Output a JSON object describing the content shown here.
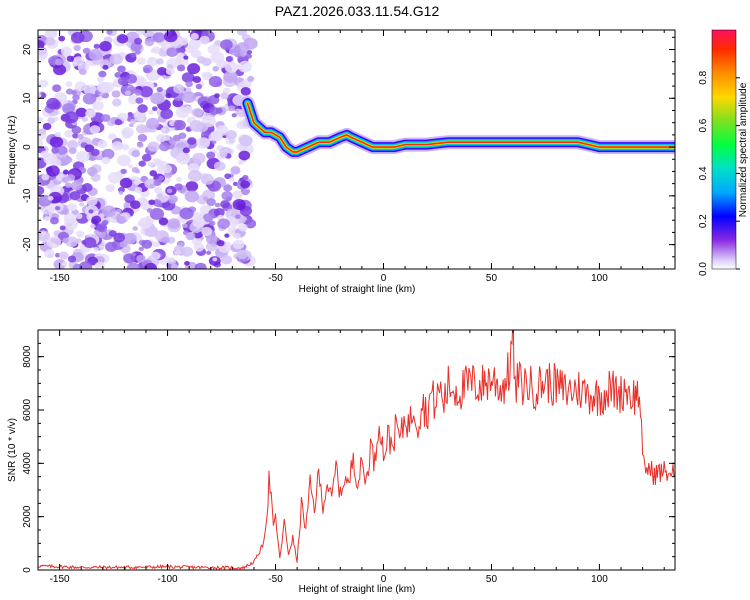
{
  "figure": {
    "title": "PAZ1.2026.033.11.54.G12"
  },
  "colors": {
    "snr_line": "#e8302a",
    "axis": "#000000",
    "background": "#ffffff",
    "colormap": [
      "#ffffff",
      "#b89cf0",
      "#8a2be2",
      "#3c00ff",
      "#0000ff",
      "#00aaff",
      "#00e5c0",
      "#00ff40",
      "#9acd32",
      "#ffd700",
      "#ff8c00",
      "#ff2a00",
      "#ff1060"
    ]
  },
  "chart_data": [
    {
      "type": "heatmap",
      "title": "PAZ1.2026.033.11.54.G12",
      "xlabel": "Height of straight line (km)",
      "ylabel": "Frequency (Hz)",
      "xlim": [
        -160,
        135
      ],
      "ylim": [
        -25,
        24
      ],
      "xticks": [
        -150,
        -100,
        -50,
        0,
        50,
        100
      ],
      "yticks": [
        -20,
        -10,
        0,
        10,
        20
      ],
      "ridge": {
        "x": [
          -63,
          -60,
          -55,
          -52,
          -48,
          -45,
          -42,
          -40,
          -35,
          -30,
          -25,
          -20,
          -17,
          -15,
          -10,
          -5,
          0,
          5,
          10,
          20,
          30,
          40,
          50,
          60,
          70,
          80,
          90,
          95,
          100,
          110,
          120,
          135
        ],
        "y": [
          9,
          5,
          3,
          3,
          2,
          0,
          -1,
          -1,
          0,
          1,
          1,
          2,
          2.5,
          2,
          1,
          0,
          0,
          0,
          0.5,
          0.5,
          1,
          1,
          1,
          1,
          1,
          1,
          1,
          0.5,
          0,
          0,
          0,
          0
        ]
      },
      "noise_region_x": [
        -160,
        -63
      ],
      "colorbar": {
        "label": "Normalized spectral amplitude",
        "range": [
          0,
          1
        ],
        "ticks": [
          "0.0",
          "0.2",
          "0.4",
          "0.6",
          "0.8"
        ]
      }
    },
    {
      "type": "line",
      "xlabel": "Height of straight line (km)",
      "ylabel": "SNR (10 * v/v)",
      "xlim": [
        -160,
        135
      ],
      "ylim": [
        0,
        9000
      ],
      "xticks": [
        -150,
        -100,
        -50,
        0,
        50,
        100
      ],
      "yticks": [
        0,
        2000,
        4000,
        6000,
        8000
      ],
      "series": [
        {
          "name": "SNR",
          "x": [
            -160,
            -140,
            -120,
            -100,
            -80,
            -65,
            -60,
            -56,
            -54,
            -53,
            -52,
            -51,
            -50,
            -48,
            -46,
            -44,
            -42,
            -40,
            -38,
            -36,
            -34,
            -32,
            -30,
            -28,
            -26,
            -24,
            -22,
            -20,
            -18,
            -16,
            -14,
            -12,
            -10,
            -8,
            -6,
            -4,
            -2,
            0,
            2,
            4,
            6,
            8,
            10,
            12,
            14,
            16,
            18,
            20,
            22,
            24,
            26,
            28,
            30,
            35,
            40,
            45,
            50,
            55,
            58,
            60,
            61,
            62,
            64,
            66,
            70,
            75,
            80,
            85,
            90,
            95,
            100,
            105,
            110,
            112,
            115,
            118,
            119,
            120,
            121,
            122,
            125,
            130,
            135
          ],
          "y": [
            150,
            100,
            100,
            120,
            90,
            80,
            300,
            900,
            2000,
            3400,
            2800,
            1500,
            2000,
            400,
            1800,
            600,
            1200,
            300,
            2500,
            1500,
            3200,
            2300,
            3600,
            2400,
            3300,
            2600,
            3900,
            2800,
            3500,
            3100,
            4400,
            3200,
            4000,
            3300,
            4700,
            4000,
            5800,
            4300,
            5000,
            4700,
            5400,
            4900,
            5800,
            5400,
            6200,
            5500,
            6400,
            5800,
            6600,
            6200,
            6800,
            6300,
            6900,
            6700,
            7000,
            6900,
            7200,
            6800,
            7400,
            8900,
            6500,
            7200,
            6900,
            7000,
            6800,
            7100,
            6900,
            6700,
            6800,
            6600,
            6500,
            6800,
            6600,
            6900,
            6500,
            6600,
            6300,
            4000,
            3700,
            3900,
            3600,
            3700,
            3600
          ]
        }
      ]
    }
  ]
}
